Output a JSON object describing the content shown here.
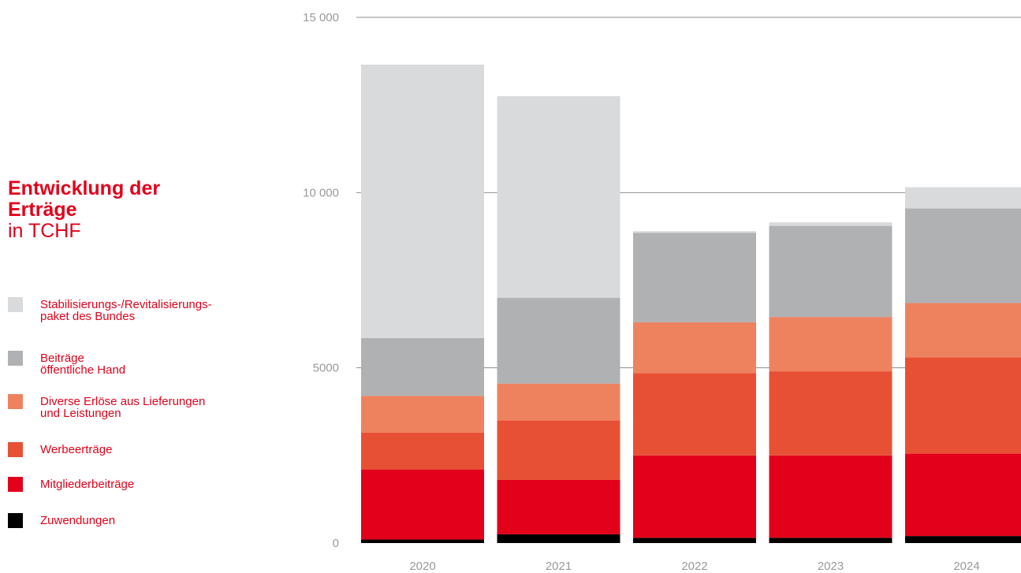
{
  "title": {
    "line1": "Entwicklung der",
    "line2": "Erträge",
    "subtitle": "in TCHF"
  },
  "chart_data": {
    "type": "bar",
    "stacked": true,
    "categories": [
      "2020",
      "2021",
      "2022",
      "2023",
      "2024"
    ],
    "ylim": [
      0,
      15000
    ],
    "yticks": [
      0,
      5000,
      10000,
      15000
    ],
    "ytick_labels": [
      "0",
      "5000",
      "10 000",
      "15 000"
    ],
    "grid": true,
    "legend_position": "left",
    "series": [
      {
        "name": "Zuwendungen",
        "color": "#000000",
        "values": [
          100,
          250,
          150,
          150,
          200
        ]
      },
      {
        "name": "Mitgliederbeiträge",
        "color": "#e2001a",
        "values": [
          2000,
          1550,
          2350,
          2350,
          2350
        ]
      },
      {
        "name": "Werbeerträge",
        "color": "#e75035",
        "values": [
          1050,
          1700,
          2350,
          2400,
          2750
        ]
      },
      {
        "name": "Diverse Erlöse aus Lieferungen\nund Leistungen",
        "color": "#ee825f",
        "values": [
          1050,
          1050,
          1450,
          1550,
          1550
        ]
      },
      {
        "name": "Beiträge\nöffentliche Hand",
        "color": "#b0b1b3",
        "values": [
          1650,
          2450,
          2550,
          2600,
          2700
        ]
      },
      {
        "name": "Stabilisierungs-/Revitalisierungs-\npaket des Bundes",
        "color": "#d9dadb",
        "values": [
          7800,
          5750,
          50,
          100,
          600
        ]
      }
    ]
  }
}
